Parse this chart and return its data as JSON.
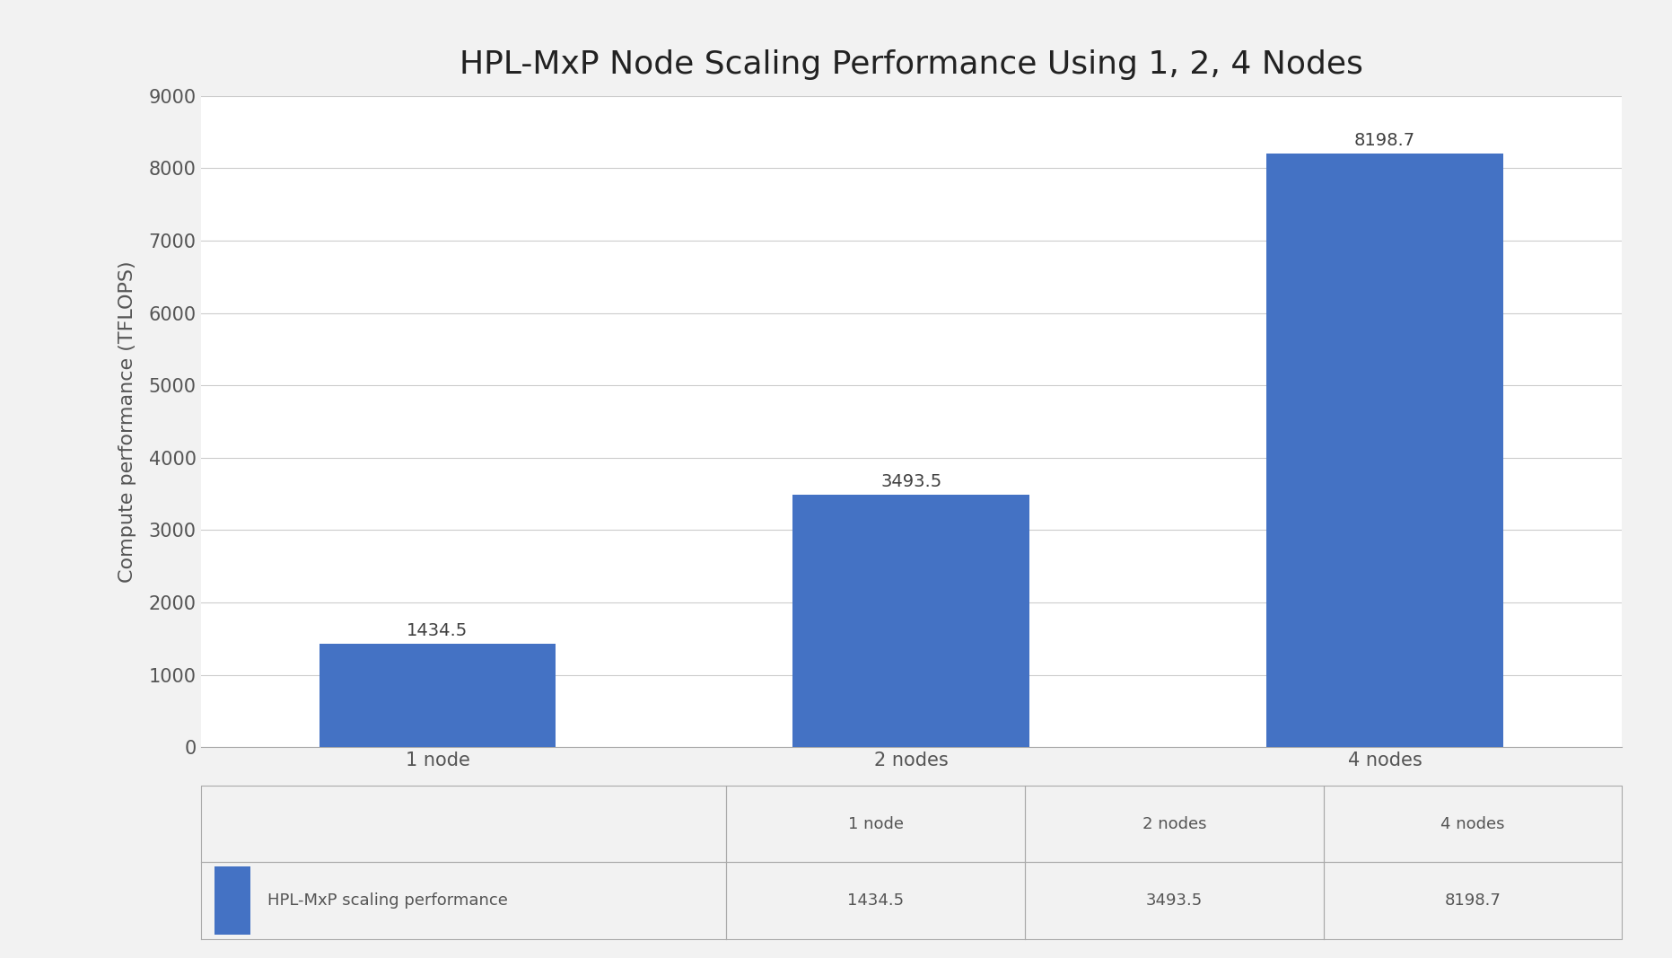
{
  "title": "HPL-MxP Node Scaling Performance Using 1, 2, 4 Nodes",
  "categories": [
    "1 node",
    "2 nodes",
    "4 nodes"
  ],
  "values": [
    1434.5,
    3493.5,
    8198.7
  ],
  "bar_color": "#4472C4",
  "ylabel": "Compute performance (TFLOPS)",
  "ylim": [
    0,
    9000
  ],
  "yticks": [
    0,
    1000,
    2000,
    3000,
    4000,
    5000,
    6000,
    7000,
    8000,
    9000
  ],
  "title_fontsize": 26,
  "axis_label_fontsize": 16,
  "tick_fontsize": 15,
  "bar_label_fontsize": 14,
  "legend_label": "HPL-MxP scaling performance",
  "legend_values": [
    "1434.5",
    "3493.5",
    "8198.7"
  ],
  "background_color": "#f2f2f2",
  "plot_bg_color": "#ffffff",
  "grid_color": "#cccccc",
  "table_border_color": "#aaaaaa"
}
